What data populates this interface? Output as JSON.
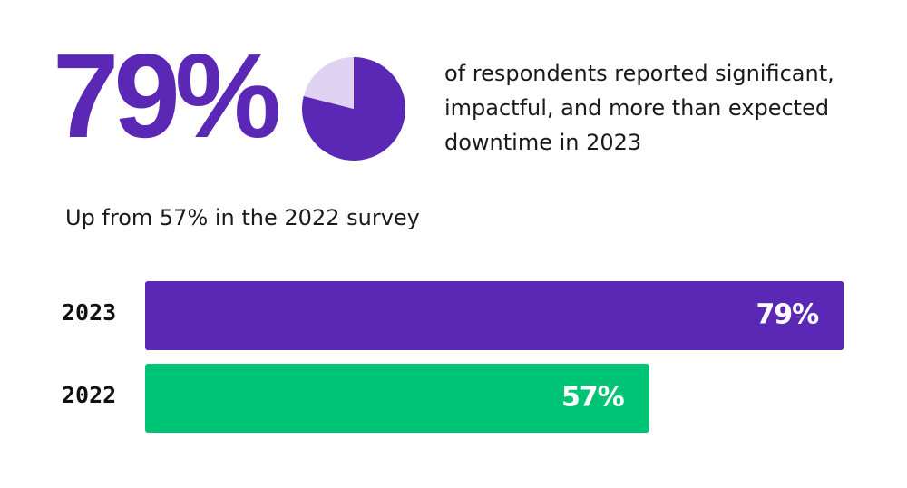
{
  "headline": {
    "stat": "79%",
    "text": "of respondents reported significant, impactful, and more than expected downtime in 2023"
  },
  "subtitle": "Up from 57% in the 2022 survey",
  "chart_data": [
    {
      "type": "pie",
      "values": [
        79,
        21
      ],
      "colors": [
        "#5b27b5",
        "#e0d2f3"
      ]
    },
    {
      "type": "bar",
      "orientation": "horizontal",
      "categories": [
        "2023",
        "2022"
      ],
      "values": [
        79,
        57
      ],
      "value_labels": [
        "79%",
        "57%"
      ],
      "colors": [
        "#5b27b5",
        "#00c475"
      ],
      "xlim": [
        0,
        100
      ]
    }
  ]
}
